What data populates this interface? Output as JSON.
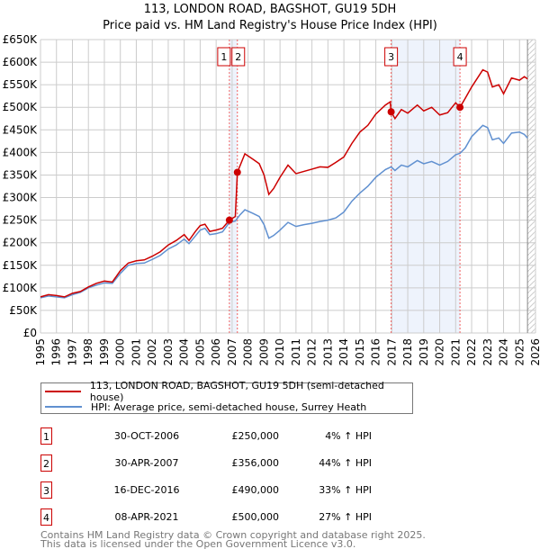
{
  "title_line1": "113, LONDON ROAD, BAGSHOT, GU19 5DH",
  "title_line2": "Price paid vs. HM Land Registry's House Price Index (HPI)",
  "chart_data": {
    "type": "line",
    "xlim": [
      1995,
      2026
    ],
    "ylim": [
      0,
      650000
    ],
    "yticks": [
      0,
      50000,
      100000,
      150000,
      200000,
      250000,
      300000,
      350000,
      400000,
      450000,
      500000,
      550000,
      600000,
      650000
    ],
    "ytick_labels": [
      "£0",
      "£50K",
      "£100K",
      "£150K",
      "£200K",
      "£250K",
      "£300K",
      "£350K",
      "£400K",
      "£450K",
      "£500K",
      "£550K",
      "£600K",
      "£650K"
    ],
    "xticks": [
      1995,
      1996,
      1997,
      1998,
      1999,
      2000,
      2001,
      2002,
      2003,
      2004,
      2005,
      2006,
      2007,
      2008,
      2009,
      2010,
      2011,
      2012,
      2013,
      2014,
      2015,
      2016,
      2017,
      2018,
      2019,
      2020,
      2021,
      2022,
      2023,
      2024,
      2025,
      2026
    ],
    "grid": true,
    "data_end": 2025.5,
    "shaded_periods": [
      [
        2006.83,
        2007.33
      ],
      [
        2016.96,
        2021.27
      ]
    ],
    "series": [
      {
        "name": "113, LONDON ROAD, BAGSHOT, GU19 5DH (semi-detached house)",
        "color": "#cc0000",
        "x": [
          1995,
          1995.5,
          1996,
          1996.5,
          1997,
          1997.5,
          1998,
          1998.5,
          1999,
          1999.5,
          2000,
          2000.5,
          2001,
          2001.5,
          2002,
          2002.5,
          2003,
          2003.5,
          2004,
          2004.3,
          2004.7,
          2005,
          2005.3,
          2005.6,
          2006,
          2006.4,
          2006.83,
          2007.2,
          2007.33,
          2007.8,
          2008.3,
          2008.7,
          2009,
          2009.3,
          2009.6,
          2010,
          2010.5,
          2011,
          2011.5,
          2012,
          2012.5,
          2013,
          2013.5,
          2014,
          2014.5,
          2015,
          2015.5,
          2016,
          2016.6,
          2016.9,
          2016.96,
          2017.2,
          2017.6,
          2018,
          2018.6,
          2019,
          2019.5,
          2020,
          2020.5,
          2021,
          2021.27,
          2021.6,
          2022,
          2022.7,
          2023,
          2023.3,
          2023.7,
          2024,
          2024.5,
          2025,
          2025.3,
          2025.5
        ],
        "y": [
          80000,
          85000,
          83000,
          80000,
          88000,
          92000,
          102000,
          110000,
          115000,
          113000,
          138000,
          155000,
          160000,
          162000,
          170000,
          180000,
          195000,
          205000,
          218000,
          205000,
          225000,
          238000,
          241000,
          225000,
          228000,
          232000,
          250000,
          258000,
          356000,
          397000,
          385000,
          375000,
          350000,
          307000,
          320000,
          345000,
          372000,
          353000,
          358000,
          363000,
          368000,
          367000,
          378000,
          390000,
          420000,
          445000,
          460000,
          485000,
          505000,
          512000,
          490000,
          475000,
          495000,
          487000,
          505000,
          492000,
          500000,
          483000,
          488000,
          510000,
          500000,
          520000,
          545000,
          583000,
          578000,
          545000,
          550000,
          530000,
          565000,
          560000,
          568000,
          563000
        ]
      },
      {
        "name": "HPI: Average price, semi-detached house, Surrey Heath",
        "color": "#6090d0",
        "x": [
          1995,
          1995.5,
          1996,
          1996.5,
          1997,
          1997.5,
          1998,
          1998.5,
          1999,
          1999.5,
          2000,
          2000.5,
          2001,
          2001.5,
          2002,
          2002.5,
          2003,
          2003.5,
          2004,
          2004.3,
          2004.7,
          2005,
          2005.3,
          2005.6,
          2006,
          2006.4,
          2006.83,
          2007.2,
          2007.5,
          2007.8,
          2008.3,
          2008.7,
          2009,
          2009.3,
          2009.6,
          2010,
          2010.5,
          2011,
          2011.5,
          2012,
          2012.5,
          2013,
          2013.5,
          2014,
          2014.5,
          2015,
          2015.5,
          2016,
          2016.6,
          2016.96,
          2017.2,
          2017.6,
          2018,
          2018.6,
          2019,
          2019.5,
          2020,
          2020.5,
          2021,
          2021.27,
          2021.6,
          2022,
          2022.7,
          2023,
          2023.3,
          2023.7,
          2024,
          2024.5,
          2025,
          2025.3,
          2025.5
        ],
        "y": [
          78000,
          82000,
          80000,
          78000,
          85000,
          90000,
          100000,
          106000,
          111000,
          110000,
          132000,
          150000,
          154000,
          155000,
          163000,
          172000,
          186000,
          195000,
          208000,
          198000,
          215000,
          228000,
          232000,
          218000,
          220000,
          224000,
          245000,
          248000,
          262000,
          273000,
          265000,
          258000,
          240000,
          210000,
          216000,
          228000,
          245000,
          236000,
          240000,
          243000,
          247000,
          250000,
          255000,
          268000,
          292000,
          310000,
          325000,
          345000,
          362000,
          368000,
          360000,
          372000,
          368000,
          382000,
          375000,
          380000,
          372000,
          380000,
          395000,
          398000,
          410000,
          435000,
          460000,
          455000,
          428000,
          432000,
          420000,
          443000,
          445000,
          440000,
          432000
        ]
      }
    ],
    "markers": [
      {
        "label": "1",
        "x": 2006.83,
        "y": 250000
      },
      {
        "label": "2",
        "x": 2007.33,
        "y": 356000
      },
      {
        "label": "3",
        "x": 2016.96,
        "y": 490000
      },
      {
        "label": "4",
        "x": 2021.27,
        "y": 500000
      }
    ]
  },
  "legend": [
    {
      "label": "113, LONDON ROAD, BAGSHOT, GU19 5DH (semi-detached house)",
      "color": "#cc0000"
    },
    {
      "label": "HPI: Average price, semi-detached house, Surrey Heath",
      "color": "#6090d0"
    }
  ],
  "transactions": [
    {
      "num": "1",
      "date": "30-OCT-2006",
      "price": "£250,000",
      "hpi": "4% ↑ HPI"
    },
    {
      "num": "2",
      "date": "30-APR-2007",
      "price": "£356,000",
      "hpi": "44% ↑ HPI"
    },
    {
      "num": "3",
      "date": "16-DEC-2016",
      "price": "£490,000",
      "hpi": "33% ↑ HPI"
    },
    {
      "num": "4",
      "date": "08-APR-2021",
      "price": "£500,000",
      "hpi": "27% ↑ HPI"
    }
  ],
  "footer_line1": "Contains HM Land Registry data © Crown copyright and database right 2025.",
  "footer_line2": "This data is licensed under the Open Government Licence v3.0."
}
